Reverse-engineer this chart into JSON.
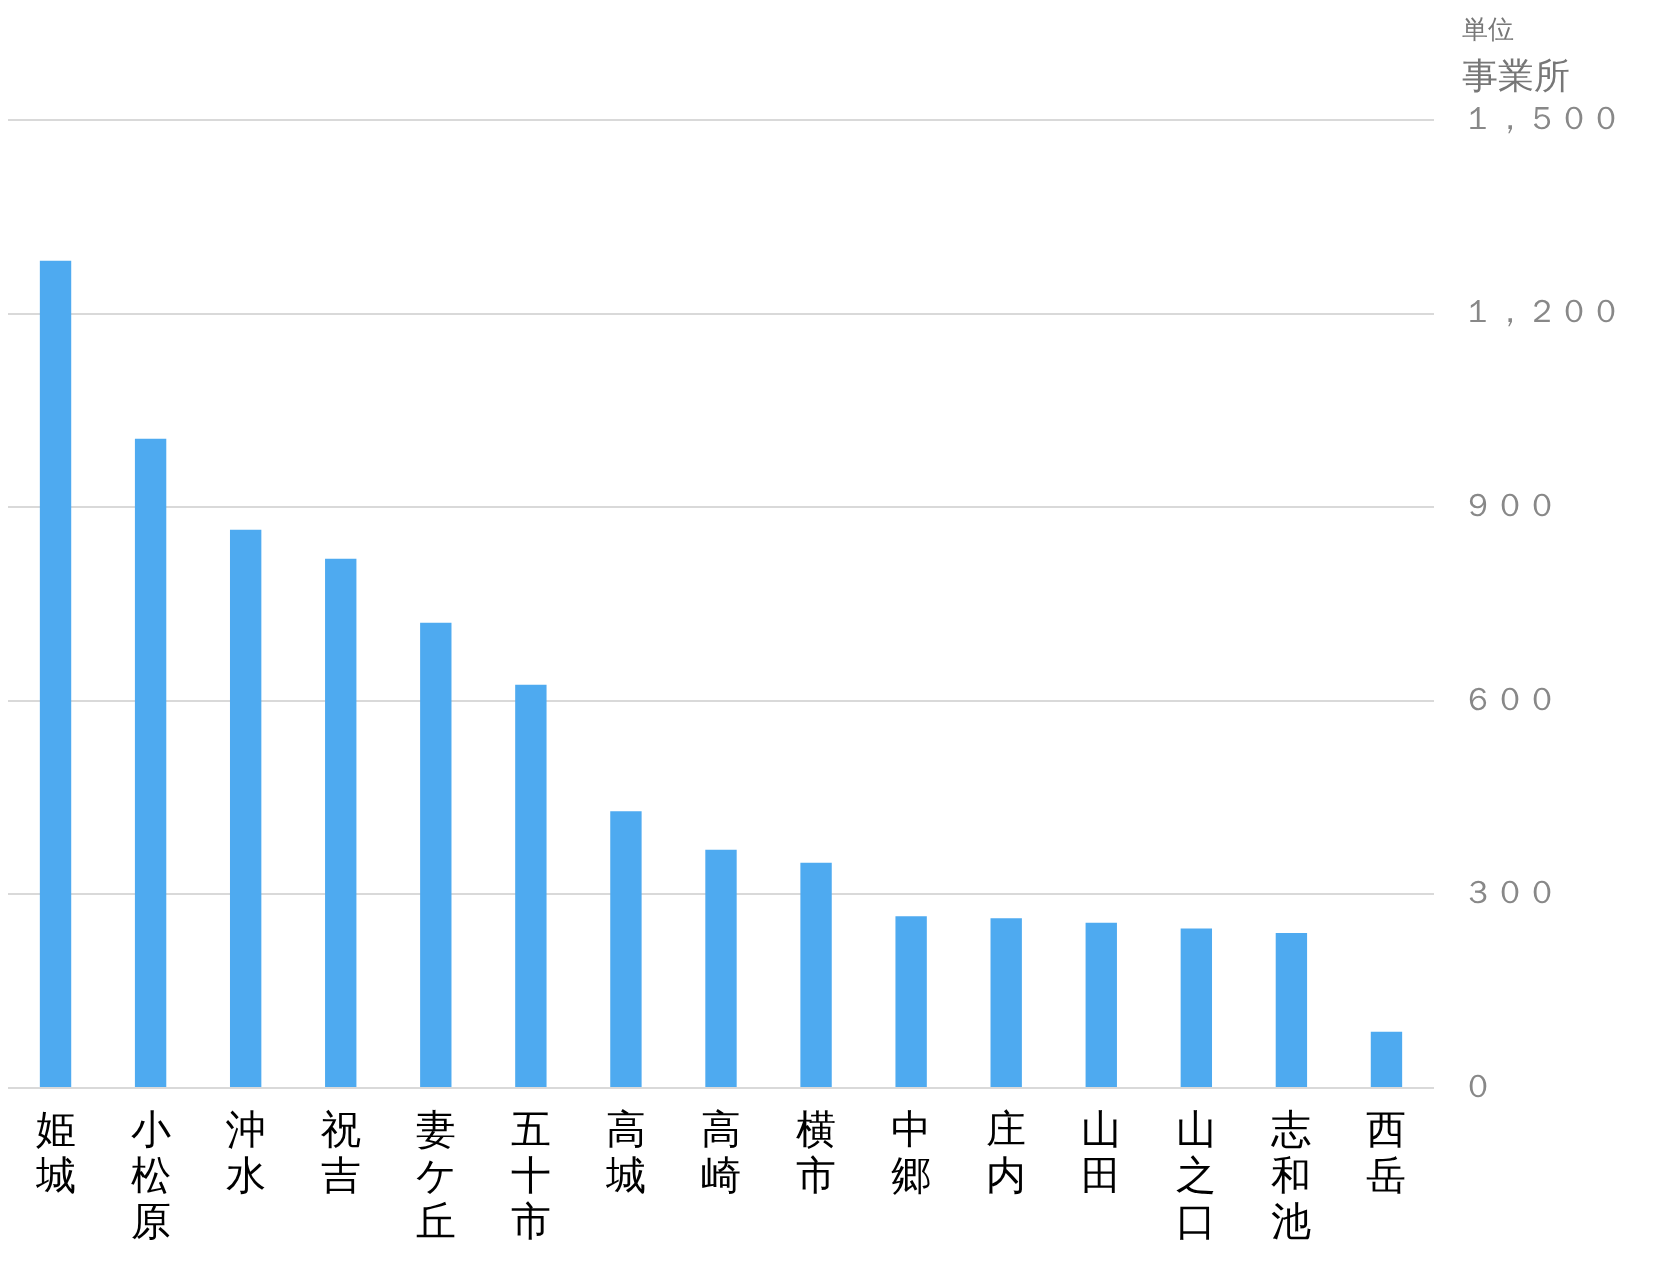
{
  "chart_data": {
    "type": "bar",
    "ylabel": "事業所",
    "annotations": [
      "単位"
    ],
    "categories": [
      "姫城",
      "小松原",
      "沖水",
      "祝吉",
      "妻ケ丘",
      "五十市",
      "高城",
      "高崎",
      "横市",
      "中郷",
      "庄内",
      "山田",
      "山之口",
      "志和池",
      "西岳"
    ],
    "values": [
      1282,
      1006,
      865,
      820,
      721,
      625,
      429,
      369,
      349,
      266,
      263,
      256,
      247,
      240,
      87
    ],
    "color": "#4eaaf0",
    "ylim": [
      0,
      1500
    ],
    "yticks": [
      {
        "value": 0,
        "label": "０"
      },
      {
        "value": 300,
        "label": "３００"
      },
      {
        "value": 600,
        "label": "６００"
      },
      {
        "value": 900,
        "label": "９００"
      },
      {
        "value": 1200,
        "label": "１，２００"
      },
      {
        "value": 1500,
        "label": "１，５００"
      }
    ],
    "grid": "y",
    "legend": false
  }
}
